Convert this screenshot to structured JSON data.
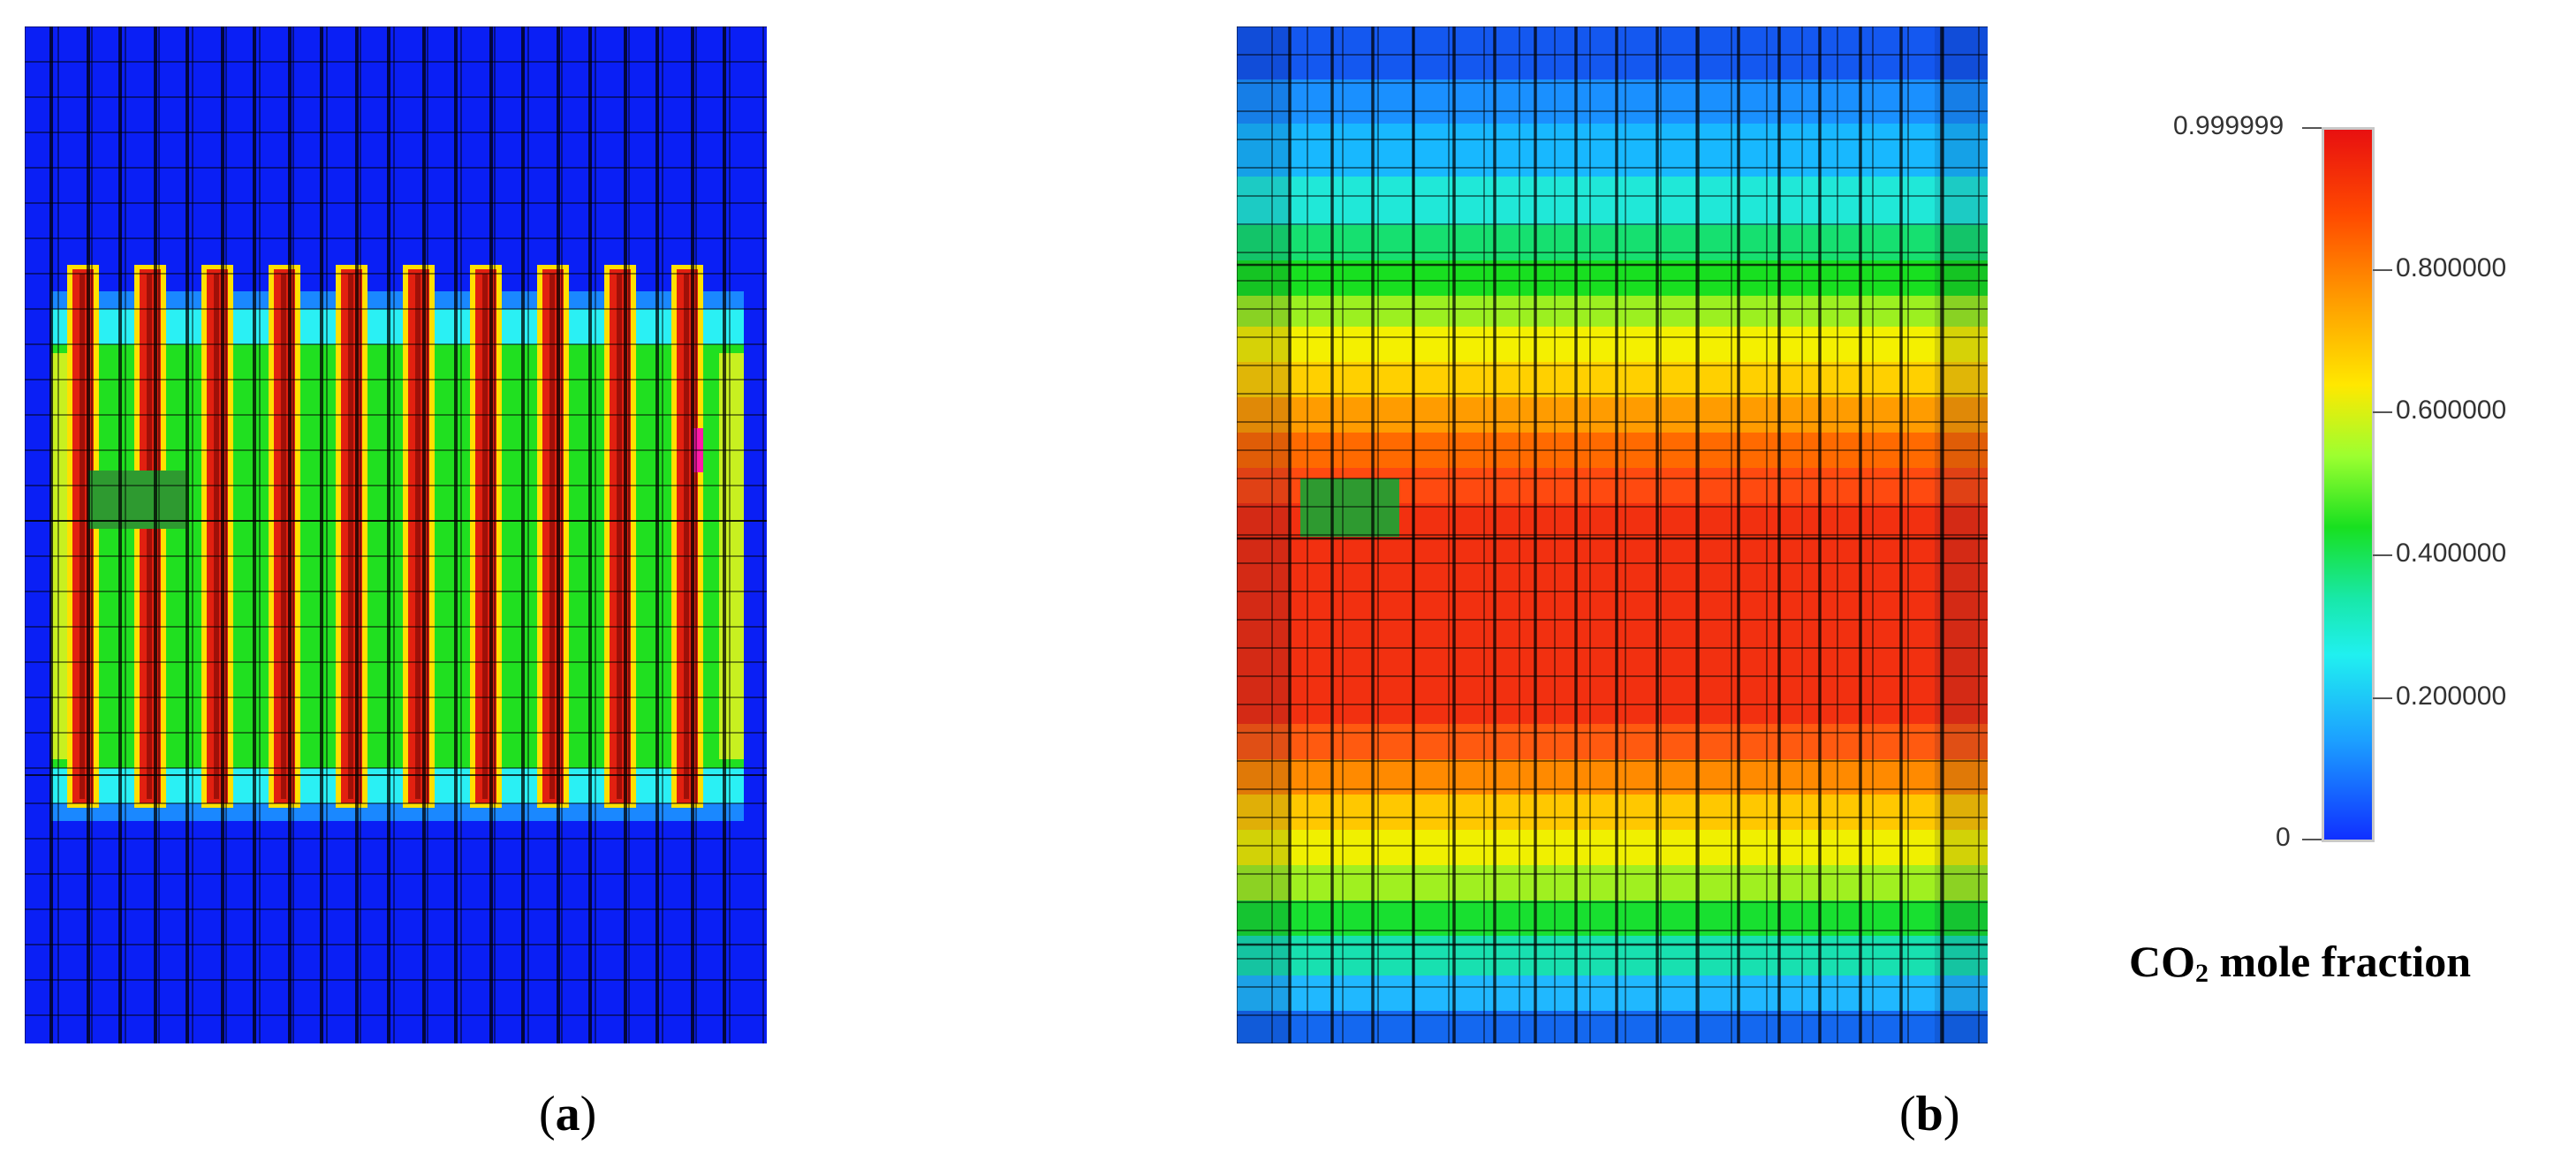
{
  "panels": {
    "a": {
      "label": "a"
    },
    "b": {
      "label": "b"
    }
  },
  "legend": {
    "max_label": "0.999999",
    "ticks": [
      "0.800000",
      "0.600000",
      "0.400000",
      "0.200000"
    ],
    "min_label": "0",
    "title_main": "CO",
    "title_sub": "2",
    "title_rest": " mole fraction"
  },
  "colors": {
    "low": "#1030ff",
    "high": "#e81010",
    "well_block": "#2e9a30",
    "marker": "#ff1aa8"
  }
}
